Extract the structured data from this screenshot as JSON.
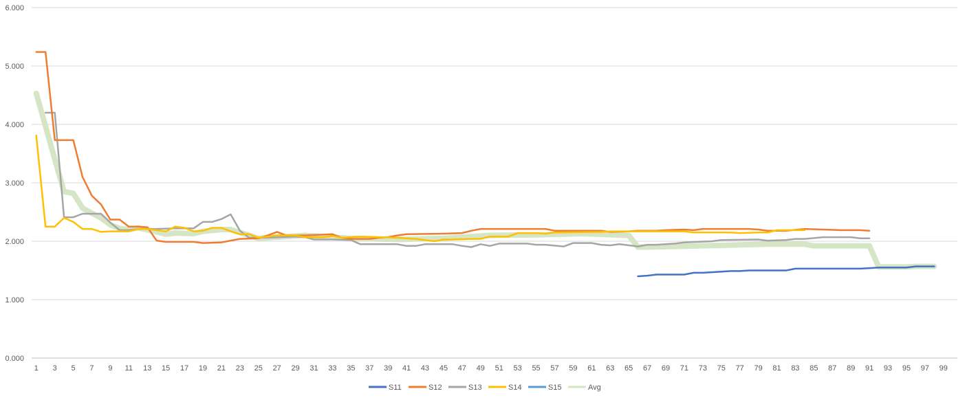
{
  "chart_data": {
    "type": "line",
    "title": "",
    "xlabel": "",
    "ylabel": "",
    "ylim": [
      0,
      6
    ],
    "yticks": [
      "0.000",
      "1.000",
      "2.000",
      "3.000",
      "4.000",
      "5.000",
      "6.000"
    ],
    "xlim": [
      1,
      99
    ],
    "xticks": [
      1,
      3,
      5,
      7,
      9,
      11,
      13,
      15,
      17,
      19,
      21,
      23,
      25,
      27,
      29,
      31,
      33,
      35,
      37,
      39,
      41,
      43,
      45,
      47,
      49,
      51,
      53,
      55,
      57,
      59,
      61,
      63,
      65,
      67,
      69,
      71,
      73,
      75,
      77,
      79,
      81,
      83,
      85,
      87,
      89,
      91,
      93,
      95,
      97,
      99
    ],
    "grid": true,
    "legend": "bottom",
    "series": [
      {
        "name": "S11",
        "color": "#4472C4",
        "points": [
          [
            66,
            1.4
          ],
          [
            67,
            1.41
          ],
          [
            68,
            1.43
          ],
          [
            70,
            1.43
          ],
          [
            71,
            1.43
          ],
          [
            72,
            1.46
          ],
          [
            73,
            1.46
          ],
          [
            75,
            1.48
          ],
          [
            76,
            1.49
          ],
          [
            77,
            1.49
          ],
          [
            78,
            1.5
          ],
          [
            82,
            1.5
          ],
          [
            83,
            1.53
          ],
          [
            90,
            1.53
          ],
          [
            92,
            1.55
          ],
          [
            95,
            1.55
          ],
          [
            96,
            1.57
          ],
          [
            98,
            1.57
          ]
        ]
      },
      {
        "name": "S12",
        "color": "#ED7D31",
        "points": [
          [
            1,
            5.24
          ],
          [
            2,
            5.24
          ],
          [
            3,
            3.73
          ],
          [
            5,
            3.73
          ],
          [
            6,
            3.1
          ],
          [
            7,
            2.78
          ],
          [
            8,
            2.63
          ],
          [
            9,
            2.37
          ],
          [
            10,
            2.37
          ],
          [
            11,
            2.25
          ],
          [
            12,
            2.25
          ],
          [
            13,
            2.24
          ],
          [
            14,
            2.01
          ],
          [
            15,
            1.99
          ],
          [
            18,
            1.99
          ],
          [
            19,
            1.97
          ],
          [
            21,
            1.98
          ],
          [
            22,
            2.01
          ],
          [
            23,
            2.04
          ],
          [
            25,
            2.05
          ],
          [
            26,
            2.1
          ],
          [
            27,
            2.16
          ],
          [
            28,
            2.1
          ],
          [
            30,
            2.1
          ],
          [
            33,
            2.12
          ],
          [
            34,
            2.06
          ],
          [
            35,
            2.04
          ],
          [
            37,
            2.04
          ],
          [
            38,
            2.06
          ],
          [
            39,
            2.07
          ],
          [
            40,
            2.1
          ],
          [
            41,
            2.12
          ],
          [
            45,
            2.13
          ],
          [
            47,
            2.14
          ],
          [
            48,
            2.18
          ],
          [
            49,
            2.21
          ],
          [
            56,
            2.21
          ],
          [
            57,
            2.18
          ],
          [
            62,
            2.18
          ],
          [
            63,
            2.16
          ],
          [
            65,
            2.17
          ],
          [
            66,
            2.18
          ],
          [
            68,
            2.18
          ],
          [
            69,
            2.19
          ],
          [
            71,
            2.2
          ],
          [
            72,
            2.19
          ],
          [
            73,
            2.21
          ],
          [
            78,
            2.21
          ],
          [
            79,
            2.2
          ],
          [
            80,
            2.18
          ],
          [
            82,
            2.18
          ],
          [
            84,
            2.21
          ],
          [
            86,
            2.2
          ],
          [
            88,
            2.19
          ],
          [
            90,
            2.19
          ],
          [
            91,
            2.18
          ]
        ]
      },
      {
        "name": "S13",
        "color": "#A5A5A5",
        "points": [
          [
            2,
            4.2
          ],
          [
            3,
            4.2
          ],
          [
            4,
            2.41
          ],
          [
            5,
            2.41
          ],
          [
            6,
            2.47
          ],
          [
            8,
            2.47
          ],
          [
            9,
            2.32
          ],
          [
            10,
            2.19
          ],
          [
            11,
            2.19
          ],
          [
            12,
            2.21
          ],
          [
            14,
            2.21
          ],
          [
            16,
            2.22
          ],
          [
            18,
            2.22
          ],
          [
            19,
            2.33
          ],
          [
            20,
            2.33
          ],
          [
            21,
            2.38
          ],
          [
            22,
            2.46
          ],
          [
            23,
            2.18
          ],
          [
            24,
            2.06
          ],
          [
            26,
            2.06
          ],
          [
            29,
            2.08
          ],
          [
            30,
            2.07
          ],
          [
            31,
            2.03
          ],
          [
            33,
            2.03
          ],
          [
            35,
            2.02
          ],
          [
            36,
            1.95
          ],
          [
            40,
            1.95
          ],
          [
            41,
            1.92
          ],
          [
            42,
            1.92
          ],
          [
            43,
            1.95
          ],
          [
            46,
            1.95
          ],
          [
            47,
            1.92
          ],
          [
            48,
            1.9
          ],
          [
            49,
            1.95
          ],
          [
            50,
            1.92
          ],
          [
            51,
            1.96
          ],
          [
            54,
            1.96
          ],
          [
            55,
            1.94
          ],
          [
            56,
            1.94
          ],
          [
            58,
            1.91
          ],
          [
            59,
            1.97
          ],
          [
            61,
            1.97
          ],
          [
            62,
            1.94
          ],
          [
            63,
            1.93
          ],
          [
            64,
            1.95
          ],
          [
            66,
            1.91
          ],
          [
            67,
            1.94
          ],
          [
            68,
            1.94
          ],
          [
            70,
            1.96
          ],
          [
            71,
            1.98
          ],
          [
            74,
            2.0
          ],
          [
            75,
            2.02
          ],
          [
            79,
            2.03
          ],
          [
            80,
            2.01
          ],
          [
            82,
            2.02
          ],
          [
            83,
            2.04
          ],
          [
            84,
            2.04
          ],
          [
            86,
            2.07
          ],
          [
            89,
            2.07
          ],
          [
            90,
            2.05
          ],
          [
            91,
            2.05
          ]
        ]
      },
      {
        "name": "S14",
        "color": "#FFC000",
        "points": [
          [
            1,
            3.81
          ],
          [
            2,
            2.25
          ],
          [
            3,
            2.25
          ],
          [
            4,
            2.4
          ],
          [
            5,
            2.33
          ],
          [
            6,
            2.21
          ],
          [
            7,
            2.21
          ],
          [
            8,
            2.16
          ],
          [
            9,
            2.17
          ],
          [
            11,
            2.17
          ],
          [
            12,
            2.21
          ],
          [
            13,
            2.21
          ],
          [
            14,
            2.19
          ],
          [
            15,
            2.17
          ],
          [
            16,
            2.25
          ],
          [
            17,
            2.23
          ],
          [
            18,
            2.17
          ],
          [
            19,
            2.18
          ],
          [
            20,
            2.23
          ],
          [
            21,
            2.23
          ],
          [
            22,
            2.17
          ],
          [
            23,
            2.12
          ],
          [
            24,
            2.12
          ],
          [
            25,
            2.06
          ],
          [
            27,
            2.1
          ],
          [
            29,
            2.1
          ],
          [
            30,
            2.07
          ],
          [
            32,
            2.07
          ],
          [
            33,
            2.09
          ],
          [
            34,
            2.06
          ],
          [
            36,
            2.08
          ],
          [
            40,
            2.06
          ],
          [
            42,
            2.04
          ],
          [
            44,
            2.0
          ],
          [
            45,
            2.03
          ],
          [
            46,
            2.03
          ],
          [
            48,
            2.04
          ],
          [
            49,
            2.04
          ],
          [
            50,
            2.08
          ],
          [
            52,
            2.08
          ],
          [
            53,
            2.14
          ],
          [
            55,
            2.14
          ],
          [
            56,
            2.13
          ],
          [
            57,
            2.15
          ],
          [
            62,
            2.16
          ],
          [
            63,
            2.17
          ],
          [
            71,
            2.17
          ],
          [
            72,
            2.15
          ],
          [
            76,
            2.15
          ],
          [
            77,
            2.14
          ],
          [
            79,
            2.15
          ],
          [
            80,
            2.15
          ],
          [
            81,
            2.19
          ],
          [
            84,
            2.19
          ]
        ]
      },
      {
        "name": "S15",
        "color": "#5B9BD5",
        "points": []
      },
      {
        "name": "Avg",
        "color": "#D5E5C6",
        "points": [
          [
            1,
            4.53
          ],
          [
            2,
            3.97
          ],
          [
            3,
            3.4
          ],
          [
            4,
            2.85
          ],
          [
            5,
            2.82
          ],
          [
            6,
            2.57
          ],
          [
            7,
            2.48
          ],
          [
            8,
            2.4
          ],
          [
            9,
            2.28
          ],
          [
            10,
            2.22
          ],
          [
            11,
            2.2
          ],
          [
            12,
            2.23
          ],
          [
            14,
            2.16
          ],
          [
            15,
            2.12
          ],
          [
            16,
            2.14
          ],
          [
            18,
            2.13
          ],
          [
            19,
            2.17
          ],
          [
            21,
            2.2
          ],
          [
            22,
            2.2
          ],
          [
            23,
            2.15
          ],
          [
            24,
            2.1
          ],
          [
            25,
            2.05
          ],
          [
            30,
            2.1
          ],
          [
            35,
            2.05
          ],
          [
            40,
            2.03
          ],
          [
            45,
            2.05
          ],
          [
            50,
            2.1
          ],
          [
            55,
            2.11
          ],
          [
            60,
            2.13
          ],
          [
            65,
            2.1
          ],
          [
            66,
            1.9
          ],
          [
            67,
            1.9
          ],
          [
            70,
            1.91
          ],
          [
            75,
            1.93
          ],
          [
            80,
            1.95
          ],
          [
            84,
            1.95
          ],
          [
            85,
            1.92
          ],
          [
            91,
            1.92
          ],
          [
            92,
            1.56
          ],
          [
            95,
            1.56
          ],
          [
            96,
            1.57
          ],
          [
            98,
            1.57
          ]
        ]
      }
    ]
  }
}
